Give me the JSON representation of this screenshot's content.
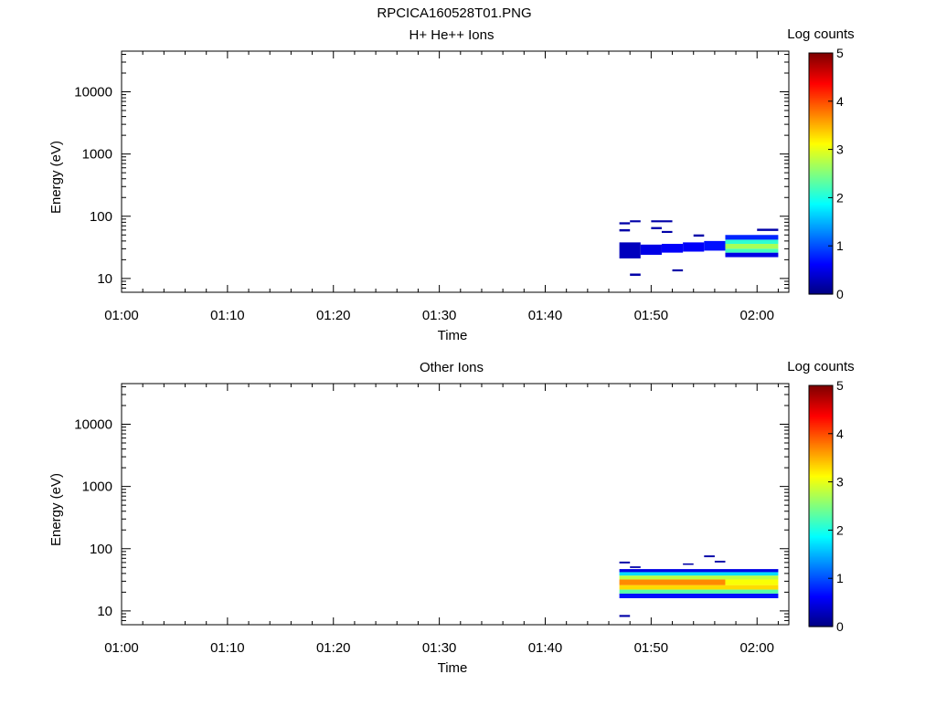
{
  "figure_title": "RPCICA160528T01.PNG",
  "colors": {
    "frame": "#000000",
    "background": "#ffffff"
  },
  "colorbar": {
    "label": "Log counts",
    "ticks": [
      "0",
      "1",
      "2",
      "3",
      "4",
      "5"
    ],
    "scale": "jet",
    "range": [
      0,
      5
    ]
  },
  "chart_data": [
    {
      "type": "heatmap",
      "title": "H+ He++ Ions",
      "xlabel": "Time",
      "ylabel": "Energy (eV)",
      "x_ticks": [
        "01:00",
        "01:10",
        "01:20",
        "01:30",
        "01:40",
        "01:50",
        "02:00"
      ],
      "xlim": [
        "01:00",
        "02:03"
      ],
      "y_scale": "log",
      "ylim": [
        6,
        45000
      ],
      "y_ticks": [
        10,
        100,
        1000,
        10000
      ],
      "y_tick_labels": [
        "10",
        "100",
        "1000",
        "10000"
      ],
      "colorbar_label": "Log counts",
      "cells": [
        {
          "t0": "01:47",
          "t1": "01:49",
          "e0": 21,
          "e1": 38,
          "v": 0.3
        },
        {
          "t0": "01:49",
          "t1": "01:51",
          "e0": 24,
          "e1": 35,
          "v": 0.5
        },
        {
          "t0": "01:51",
          "t1": "01:53",
          "e0": 26,
          "e1": 36,
          "v": 0.6
        },
        {
          "t0": "01:53",
          "t1": "01:55",
          "e0": 27,
          "e1": 38,
          "v": 0.6
        },
        {
          "t0": "01:55",
          "t1": "01:57",
          "e0": 28,
          "e1": 40,
          "v": 0.7
        },
        {
          "t0": "01:57",
          "t1": "02:02",
          "e0": 22,
          "e1": 26,
          "v": 0.5
        },
        {
          "t0": "01:57",
          "t1": "02:02",
          "e0": 26,
          "e1": 30,
          "v": 2.2
        },
        {
          "t0": "01:57",
          "t1": "02:02",
          "e0": 30,
          "e1": 36,
          "v": 2.7
        },
        {
          "t0": "01:57",
          "t1": "02:02",
          "e0": 36,
          "e1": 42,
          "v": 2.1
        },
        {
          "t0": "01:57",
          "t1": "02:02",
          "e0": 42,
          "e1": 50,
          "v": 0.8
        },
        {
          "t0": "01:47",
          "t1": "01:48",
          "e0": 74,
          "e1": 80,
          "v": 0.2
        },
        {
          "t0": "01:48",
          "t1": "01:49",
          "e0": 80,
          "e1": 86,
          "v": 0.2
        },
        {
          "t0": "01:47",
          "t1": "01:48",
          "e0": 57,
          "e1": 62,
          "v": 0.2
        },
        {
          "t0": "01:50",
          "t1": "01:51",
          "e0": 62,
          "e1": 67,
          "v": 0.2
        },
        {
          "t0": "01:50",
          "t1": "01:52",
          "e0": 80,
          "e1": 86,
          "v": 0.2
        },
        {
          "t0": "01:51",
          "t1": "01:52",
          "e0": 54,
          "e1": 58,
          "v": 0.2
        },
        {
          "t0": "01:54",
          "t1": "01:55",
          "e0": 47,
          "e1": 51,
          "v": 0.2
        },
        {
          "t0": "02:00",
          "t1": "02:02",
          "e0": 58,
          "e1": 63,
          "v": 0.2
        },
        {
          "t0": "01:48",
          "t1": "01:49",
          "e0": 11,
          "e1": 12,
          "v": 0.2
        },
        {
          "t0": "01:52",
          "t1": "01:53",
          "e0": 13,
          "e1": 14,
          "v": 0.2
        }
      ]
    },
    {
      "type": "heatmap",
      "title": "Other Ions",
      "xlabel": "Time",
      "ylabel": "Energy (eV)",
      "x_ticks": [
        "01:00",
        "01:10",
        "01:20",
        "01:30",
        "01:40",
        "01:50",
        "02:00"
      ],
      "xlim": [
        "01:00",
        "02:03"
      ],
      "y_scale": "log",
      "ylim": [
        6,
        45000
      ],
      "y_ticks": [
        10,
        100,
        1000,
        10000
      ],
      "y_tick_labels": [
        "10",
        "100",
        "1000",
        "10000"
      ],
      "colorbar_label": "Log counts",
      "cells": [
        {
          "t0": "01:47",
          "t1": "02:02",
          "e0": 16,
          "e1": 19,
          "v": 0.7
        },
        {
          "t0": "01:47",
          "t1": "02:02",
          "e0": 19,
          "e1": 22,
          "v": 2.3
        },
        {
          "t0": "01:47",
          "t1": "02:02",
          "e0": 22,
          "e1": 26,
          "v": 3.3
        },
        {
          "t0": "01:47",
          "t1": "01:57",
          "e0": 26,
          "e1": 32,
          "v": 3.7
        },
        {
          "t0": "01:57",
          "t1": "02:02",
          "e0": 26,
          "e1": 32,
          "v": 3.1
        },
        {
          "t0": "01:47",
          "t1": "02:02",
          "e0": 32,
          "e1": 37,
          "v": 2.8
        },
        {
          "t0": "01:47",
          "t1": "02:02",
          "e0": 37,
          "e1": 42,
          "v": 1.7
        },
        {
          "t0": "01:47",
          "t1": "02:02",
          "e0": 42,
          "e1": 47,
          "v": 0.5
        },
        {
          "t0": "01:47",
          "t1": "01:48",
          "e0": 58,
          "e1": 62,
          "v": 0.2
        },
        {
          "t0": "01:48",
          "t1": "01:49",
          "e0": 49,
          "e1": 52,
          "v": 0.2
        },
        {
          "t0": "01:53",
          "t1": "01:54",
          "e0": 55,
          "e1": 58,
          "v": 0.2
        },
        {
          "t0": "01:55",
          "t1": "01:56",
          "e0": 73,
          "e1": 78,
          "v": 0.2
        },
        {
          "t0": "01:56",
          "t1": "01:57",
          "e0": 60,
          "e1": 64,
          "v": 0.2
        },
        {
          "t0": "01:47",
          "t1": "01:48",
          "e0": 8,
          "e1": 8.6,
          "v": 0.2
        }
      ]
    }
  ]
}
